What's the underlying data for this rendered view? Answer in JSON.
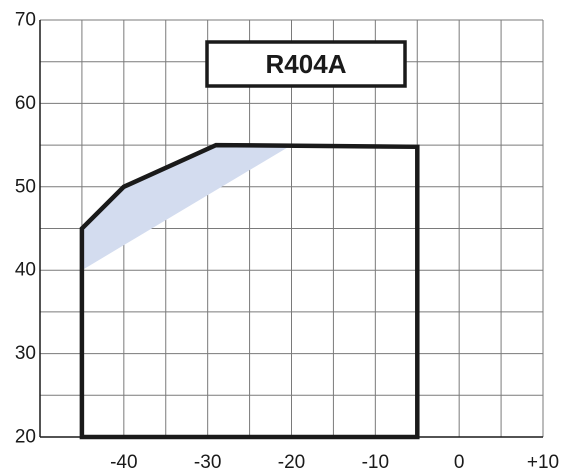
{
  "chart_data": {
    "type": "area",
    "title": "R404A",
    "xlabel": "",
    "ylabel": "",
    "xlim": [
      -50,
      10
    ],
    "ylim": [
      20,
      70
    ],
    "x_ticks": [
      "-40",
      "-30",
      "-20",
      "-10",
      "0",
      "+10"
    ],
    "x_tick_values": [
      -40,
      -30,
      -20,
      -10,
      0,
      10
    ],
    "y_ticks": [
      "20",
      "30",
      "40",
      "50",
      "60",
      "70"
    ],
    "y_tick_values": [
      20,
      30,
      40,
      50,
      60,
      70
    ],
    "grid": true,
    "grid_step_x": 5,
    "grid_step_y": 5,
    "series": [
      {
        "kind": "envelope-outline",
        "color": "#1a1a1a",
        "points": [
          [
            -45,
            20
          ],
          [
            -45,
            45
          ],
          [
            -40,
            50
          ],
          [
            -29,
            55
          ],
          [
            -5,
            54.8
          ],
          [
            -5,
            20
          ]
        ]
      },
      {
        "kind": "shaded-region",
        "color": "#d3dcef",
        "points": [
          [
            -45,
            40
          ],
          [
            -45,
            45
          ],
          [
            -40,
            50
          ],
          [
            -29,
            55
          ],
          [
            -20,
            55
          ]
        ]
      }
    ]
  }
}
